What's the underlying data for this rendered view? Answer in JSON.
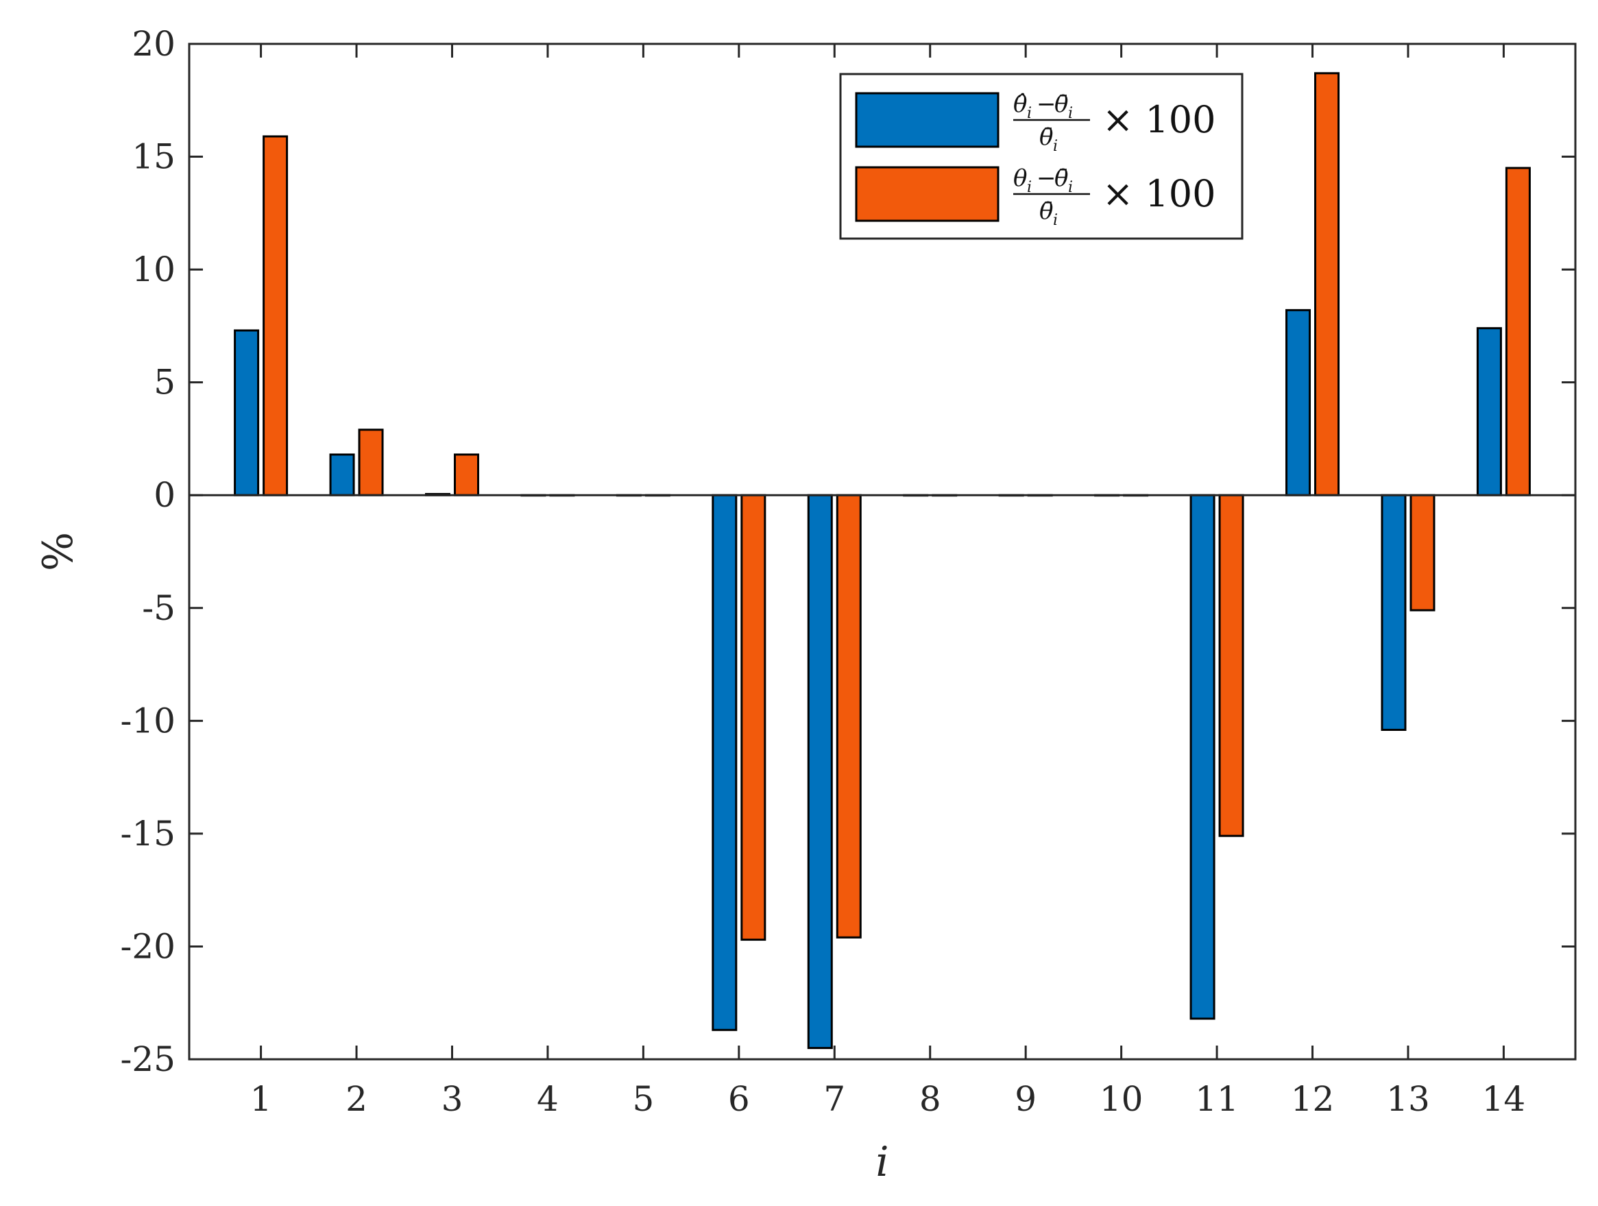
{
  "chart_data": {
    "type": "bar",
    "categories": [
      "1",
      "2",
      "3",
      "4",
      "5",
      "6",
      "7",
      "8",
      "9",
      "10",
      "11",
      "12",
      "13",
      "14"
    ],
    "series": [
      {
        "name": "(θ̂ᵢ − θ̄ᵢ) / θ̄ᵢ × 100",
        "legend": {
          "hat_num": "θ̂",
          "sub": "i",
          "minus": "−",
          "bar_num": "θ̄",
          "den": "θ̄",
          "times": "× 100"
        },
        "color": "#0072BD",
        "values": [
          7.3,
          1.8,
          0.05,
          0,
          0,
          -23.7,
          -24.5,
          0,
          0,
          0,
          -23.2,
          8.2,
          -10.4,
          7.4
        ]
      },
      {
        "name": "(θᵢ − θ̄ᵢ) / θ̄ᵢ × 100",
        "legend": {
          "hat_num": "θ",
          "sub": "i",
          "minus": "−",
          "bar_num": "θ̄",
          "den": "θ̄",
          "times": "× 100"
        },
        "color": "#F25A0C",
        "values": [
          15.9,
          2.9,
          1.8,
          0,
          0,
          -19.7,
          -19.6,
          0,
          0,
          0,
          -15.1,
          18.7,
          -5.1,
          14.5
        ]
      }
    ],
    "xlabel": "i",
    "ylabel": "%",
    "ylim": [
      -25,
      20
    ],
    "yticks": [
      -25,
      -20,
      -15,
      -10,
      -5,
      0,
      5,
      10,
      15,
      20
    ],
    "grid": false,
    "legend_position": "top-right"
  }
}
